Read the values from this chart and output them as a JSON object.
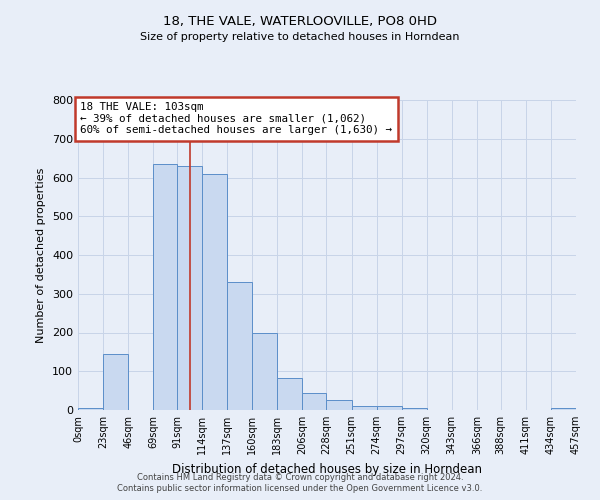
{
  "title": "18, THE VALE, WATERLOOVILLE, PO8 0HD",
  "subtitle": "Size of property relative to detached houses in Horndean",
  "xlabel": "Distribution of detached houses by size in Horndean",
  "ylabel": "Number of detached properties",
  "bin_edges": [
    0,
    23,
    46,
    69,
    91,
    114,
    137,
    160,
    183,
    206,
    228,
    251,
    274,
    297,
    320,
    343,
    366,
    388,
    411,
    434,
    457
  ],
  "bin_labels": [
    "0sqm",
    "23sqm",
    "46sqm",
    "69sqm",
    "91sqm",
    "114sqm",
    "137sqm",
    "160sqm",
    "183sqm",
    "206sqm",
    "228sqm",
    "251sqm",
    "274sqm",
    "297sqm",
    "320sqm",
    "343sqm",
    "366sqm",
    "388sqm",
    "411sqm",
    "434sqm",
    "457sqm"
  ],
  "counts": [
    5,
    145,
    0,
    635,
    630,
    610,
    330,
    200,
    83,
    45,
    26,
    10,
    10,
    5,
    0,
    0,
    0,
    0,
    0,
    5
  ],
  "bar_fill": "#c9d9f0",
  "bar_edge": "#5b8ec9",
  "property_sqm": 103,
  "property_line_color": "#c0392b",
  "annotation_line1": "18 THE VALE: 103sqm",
  "annotation_line2": "← 39% of detached houses are smaller (1,062)",
  "annotation_line3": "60% of semi-detached houses are larger (1,630) →",
  "annotation_box_edge": "#c0392b",
  "annotation_box_fill": "white",
  "ylim": [
    0,
    800
  ],
  "yticks": [
    0,
    100,
    200,
    300,
    400,
    500,
    600,
    700,
    800
  ],
  "grid_color": "#c8d4e8",
  "background_color": "#e8eef8",
  "footer_line1": "Contains HM Land Registry data © Crown copyright and database right 2024.",
  "footer_line2": "Contains public sector information licensed under the Open Government Licence v3.0."
}
